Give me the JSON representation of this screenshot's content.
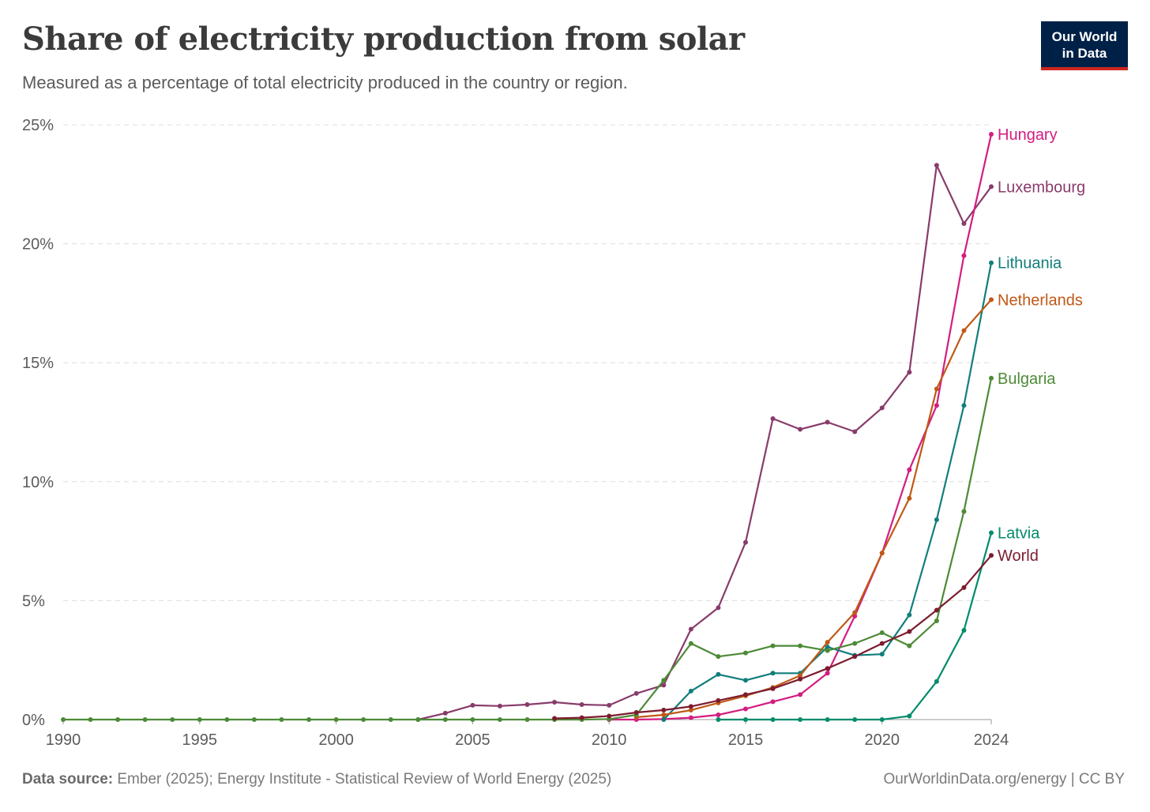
{
  "header": {
    "title": "Share of electricity production from solar",
    "subtitle": "Measured as a percentage of total electricity produced in the country or region.",
    "logo_line1": "Our World",
    "logo_line2": "in Data"
  },
  "footer": {
    "source_label": "Data source:",
    "source_text": " Ember (2025); Energy Institute - Statistical Review of World Energy (2025)",
    "credit": "OurWorldinData.org/energy | CC BY"
  },
  "colors": {
    "logo_bg": "#002147",
    "logo_accent": "#ce261e",
    "grid": "#dddddd"
  },
  "chart_data": {
    "type": "line",
    "title": "Share of electricity production from solar",
    "subtitle": "Measured as a percentage of total electricity produced in the country or region.",
    "xlim": [
      1990,
      2024
    ],
    "ylim": [
      0,
      25
    ],
    "y_ticks": [
      0,
      5,
      10,
      15,
      20,
      25
    ],
    "y_tick_labels": [
      "0%",
      "5%",
      "10%",
      "15%",
      "20%",
      "25%"
    ],
    "x_ticks": [
      1990,
      1995,
      2000,
      2005,
      2010,
      2015,
      2020,
      2024
    ],
    "x_tick_labels": [
      "1990",
      "1995",
      "2000",
      "2005",
      "2010",
      "2015",
      "2020",
      "2024"
    ],
    "grid": "horizontal dashed",
    "legend": "end-of-line labels",
    "series": [
      {
        "name": "Luxembourg",
        "color": "#883c6b",
        "x": [
          2003,
          2004,
          2005,
          2006,
          2007,
          2008,
          2009,
          2010,
          2011,
          2012,
          2013,
          2014,
          2015,
          2016,
          2017,
          2018,
          2019,
          2020,
          2021,
          2022,
          2023,
          2024
        ],
        "y": [
          0.0,
          0.27,
          0.6,
          0.57,
          0.63,
          0.73,
          0.63,
          0.6,
          1.1,
          1.45,
          3.8,
          4.7,
          7.45,
          12.65,
          12.2,
          12.5,
          12.1,
          13.1,
          14.6,
          23.3,
          20.85,
          22.4
        ]
      },
      {
        "name": "Hungary",
        "color": "#d31d80",
        "x": [
          2010,
          2011,
          2012,
          2013,
          2014,
          2015,
          2016,
          2017,
          2018,
          2019,
          2020,
          2021,
          2022,
          2023,
          2024
        ],
        "y": [
          0.0,
          0.0,
          0.02,
          0.08,
          0.2,
          0.45,
          0.75,
          1.05,
          1.95,
          4.35,
          7.0,
          10.5,
          13.2,
          19.5,
          24.6
        ]
      },
      {
        "name": "Lithuania",
        "color": "#117e7b",
        "x": [
          2012,
          2013,
          2014,
          2015,
          2016,
          2017,
          2018,
          2019,
          2020,
          2021,
          2022,
          2023,
          2024
        ],
        "y": [
          0.0,
          1.2,
          1.9,
          1.65,
          1.95,
          1.95,
          3.05,
          2.7,
          2.75,
          4.4,
          8.4,
          13.2,
          19.2
        ]
      },
      {
        "name": "Netherlands",
        "color": "#c05917",
        "x": [
          2011,
          2012,
          2013,
          2014,
          2015,
          2016,
          2017,
          2018,
          2019,
          2020,
          2021,
          2022,
          2023,
          2024
        ],
        "y": [
          0.1,
          0.2,
          0.4,
          0.7,
          1.0,
          1.35,
          1.85,
          3.25,
          4.5,
          7.0,
          9.3,
          13.9,
          16.35,
          17.65
        ]
      },
      {
        "name": "Bulgaria",
        "color": "#4d8a36",
        "x": [
          1990,
          1991,
          1992,
          1993,
          1994,
          1995,
          1996,
          1997,
          1998,
          1999,
          2000,
          2001,
          2002,
          2003,
          2004,
          2005,
          2006,
          2007,
          2008,
          2009,
          2010,
          2011,
          2012,
          2013,
          2014,
          2015,
          2016,
          2017,
          2018,
          2019,
          2020,
          2021,
          2022,
          2023,
          2024
        ],
        "y": [
          0,
          0,
          0,
          0,
          0,
          0,
          0,
          0,
          0,
          0,
          0,
          0,
          0,
          0,
          0,
          0,
          0,
          0,
          0,
          0,
          0.02,
          0.2,
          1.65,
          3.2,
          2.65,
          2.8,
          3.1,
          3.1,
          2.9,
          3.2,
          3.65,
          3.1,
          4.15,
          8.75,
          14.35
        ]
      },
      {
        "name": "Latvia",
        "color": "#018b6c",
        "x": [
          2014,
          2015,
          2016,
          2017,
          2018,
          2019,
          2020,
          2021,
          2022,
          2023,
          2024
        ],
        "y": [
          0.0,
          0.0,
          0.0,
          0.0,
          0.0,
          0.0,
          0.0,
          0.15,
          1.6,
          3.75,
          7.85
        ]
      },
      {
        "name": "World",
        "color": "#7c1c2e",
        "x": [
          2008,
          2009,
          2010,
          2011,
          2012,
          2013,
          2014,
          2015,
          2016,
          2017,
          2018,
          2019,
          2020,
          2021,
          2022,
          2023,
          2024
        ],
        "y": [
          0.05,
          0.08,
          0.15,
          0.3,
          0.4,
          0.55,
          0.8,
          1.05,
          1.3,
          1.7,
          2.15,
          2.65,
          3.2,
          3.7,
          4.6,
          5.55,
          6.9
        ]
      }
    ]
  }
}
